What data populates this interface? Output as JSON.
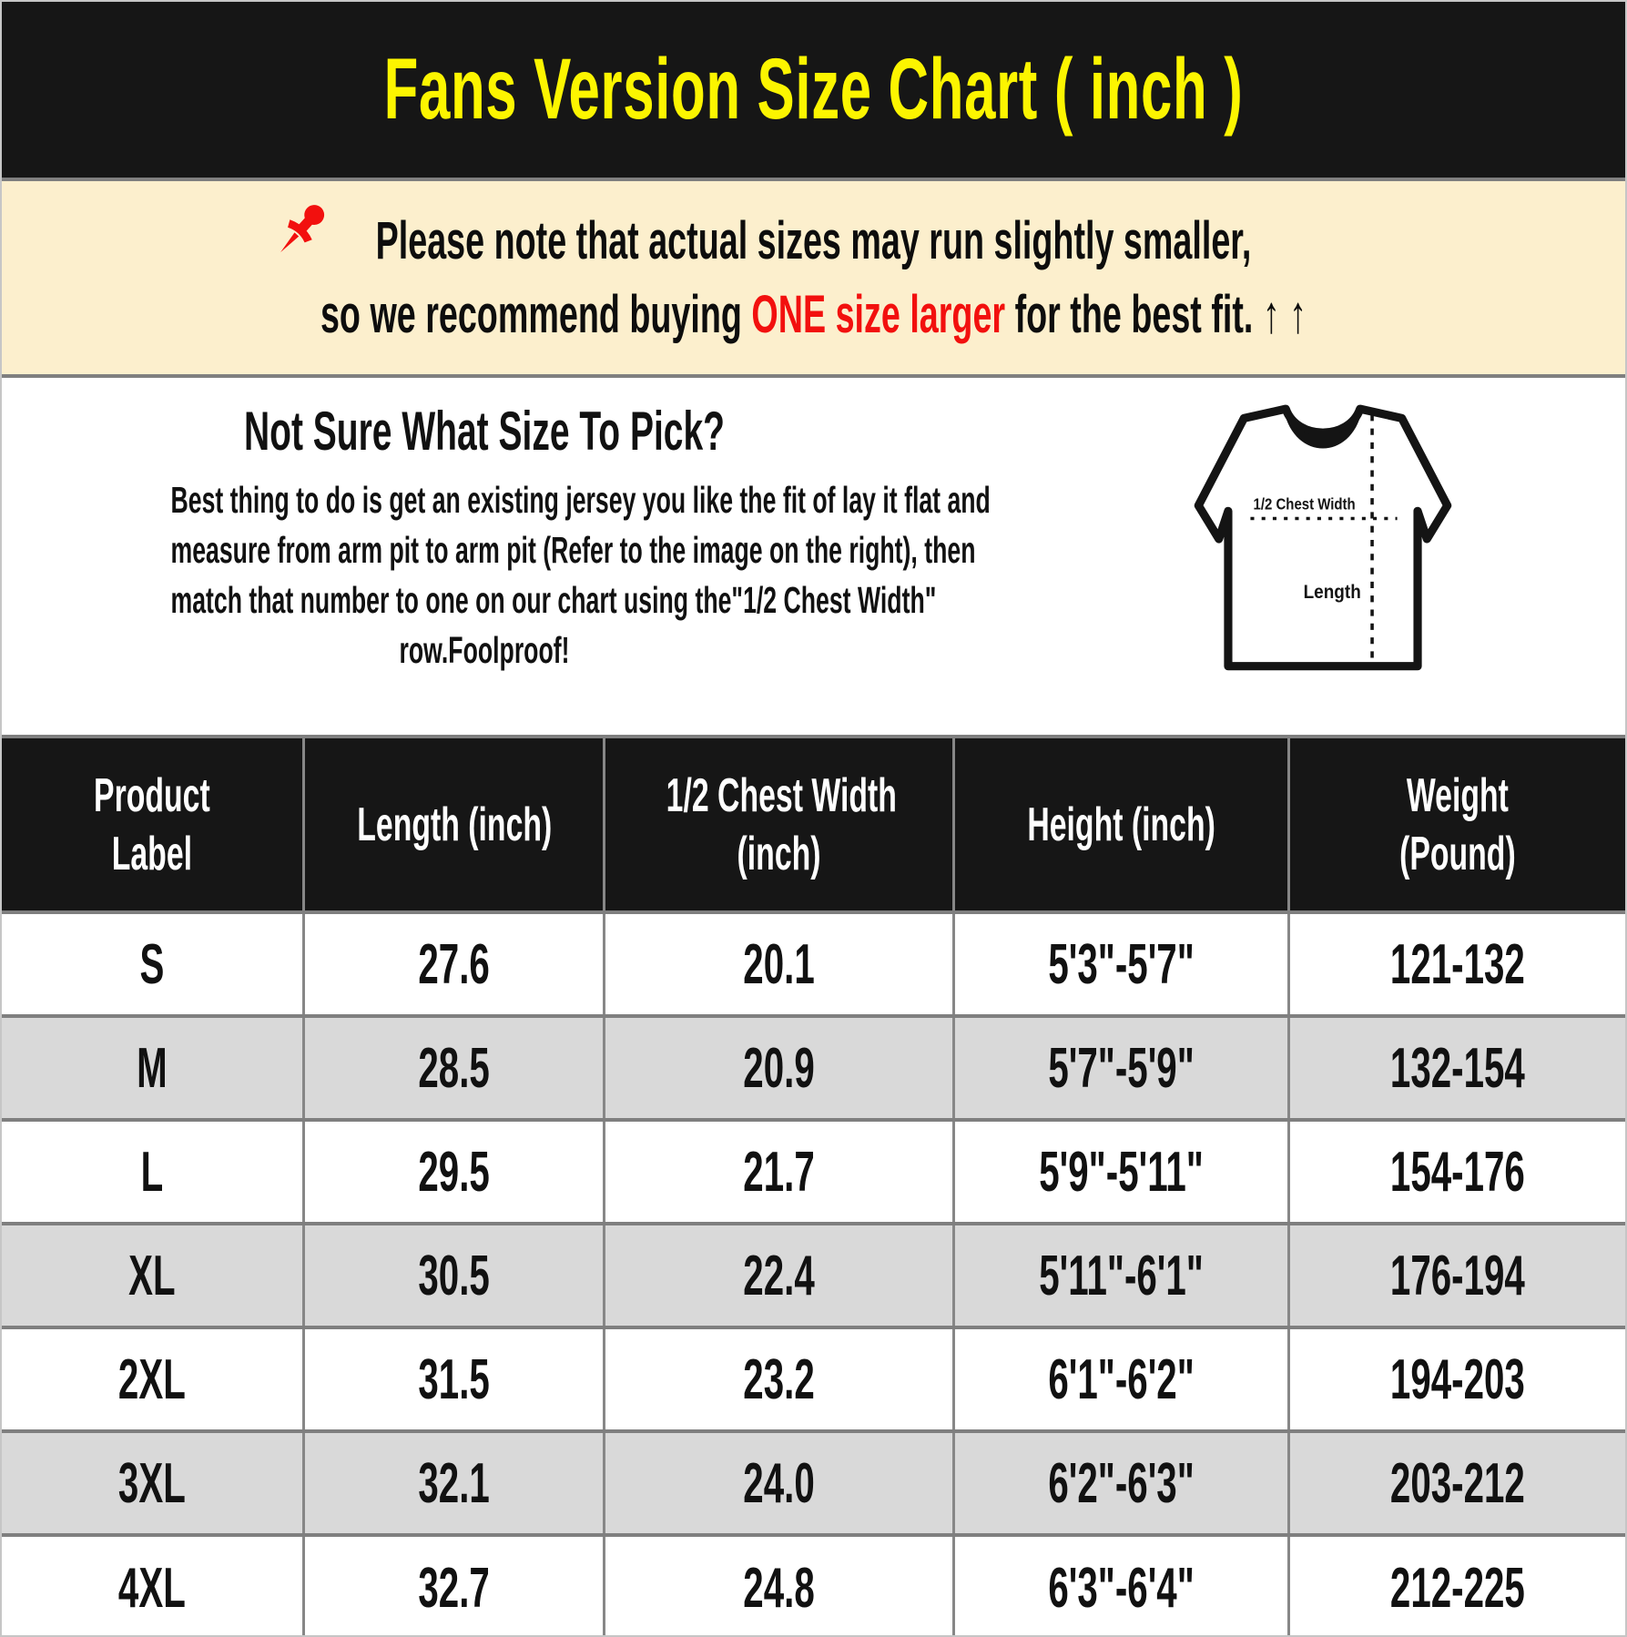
{
  "title": "Fans Version Size Chart ( inch )",
  "note": {
    "pin_icon": "pushpin-icon",
    "line1": "Please note that actual sizes may run slightly smaller,",
    "line2_pre": "so we recommend buying ",
    "line2_red": "ONE size larger",
    "line2_post": " for the best fit. ↑ ↑"
  },
  "guide": {
    "heading": "Not Sure What Size To Pick?",
    "body_lines": [
      "Best thing to do is get an existing jersey you like the fit of lay it flat and",
      "measure from arm pit to arm pit (Refer to the image on the right), then",
      "match that number to one on our chart using the\"1/2 Chest Width\"",
      "row.Foolproof!"
    ],
    "diagram": {
      "icon": "tshirt-diagram",
      "chest_label": "1/2 Chest Width",
      "length_label": "Length"
    }
  },
  "table": {
    "columns": [
      [
        "Product",
        "Label"
      ],
      [
        "Length (inch)"
      ],
      [
        "1/2 Chest Width",
        "(inch)"
      ],
      [
        "Height (inch)"
      ],
      [
        "Weight",
        "(Pound)"
      ]
    ],
    "rows": [
      {
        "label": "S",
        "length": "27.6",
        "chest": "20.1",
        "height": "5'3\"-5'7\"",
        "weight": "121-132"
      },
      {
        "label": "M",
        "length": "28.5",
        "chest": "20.9",
        "height": "5'7\"-5'9\"",
        "weight": "132-154"
      },
      {
        "label": "L",
        "length": "29.5",
        "chest": "21.7",
        "height": "5'9\"-5'11\"",
        "weight": "154-176"
      },
      {
        "label": "XL",
        "length": "30.5",
        "chest": "22.4",
        "height": "5'11\"-6'1\"",
        "weight": "176-194"
      },
      {
        "label": "2XL",
        "length": "31.5",
        "chest": "23.2",
        "height": "6'1\"-6'2\"",
        "weight": "194-203"
      },
      {
        "label": "3XL",
        "length": "32.1",
        "chest": "24.0",
        "height": "6'2\"-6'3\"",
        "weight": "203-212"
      },
      {
        "label": "4XL",
        "length": "32.7",
        "chest": "24.8",
        "height": "6'3\"-6'4\"",
        "weight": "212-225"
      }
    ]
  },
  "colors": {
    "header_bg": "#161616",
    "title_yellow": "#FCF500",
    "note_bg": "#FCEFCD",
    "alert_red": "#F2100E",
    "row_alt_gray": "#D9D9D9",
    "grid_gray": "#7F7F7F"
  }
}
